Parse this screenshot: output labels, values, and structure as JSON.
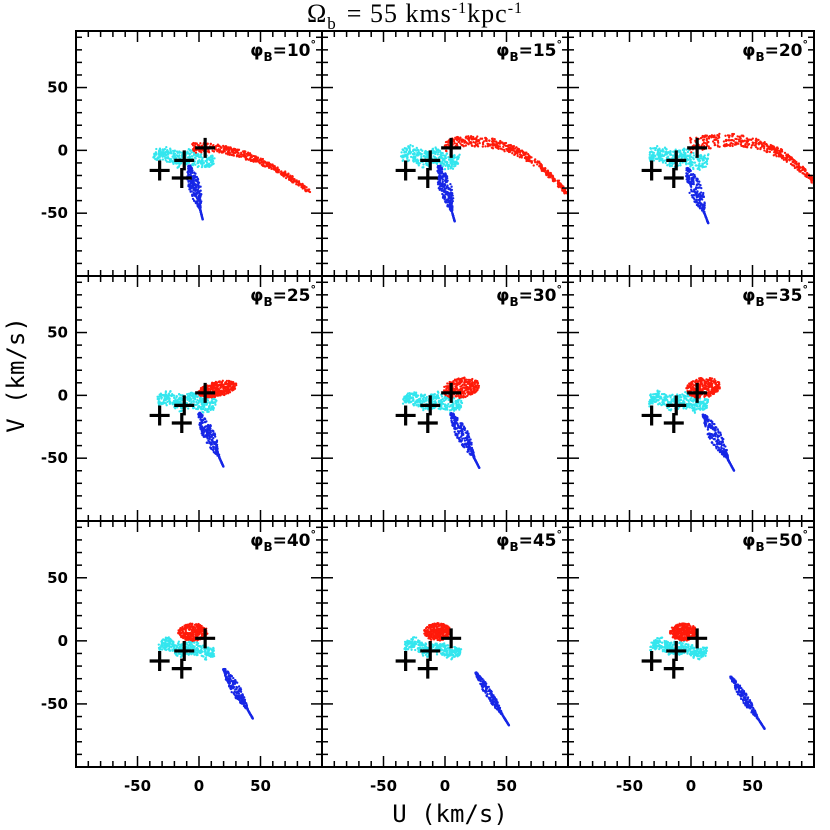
{
  "figure": {
    "title": "Ω_b = 55 kms^-1kpc^-1",
    "title_main": "Ω",
    "title_sub": "b",
    "title_rest": "= 55 kms",
    "title_exp1": "-1",
    "title_kpc": "kpc",
    "title_exp2": "-1",
    "xlabel": "U (km/s)",
    "ylabel": "V (km/s)"
  },
  "colors": {
    "red_cloud": "#ff1a0a",
    "cyan_cloud": "#33e6ee",
    "blue_cloud": "#1626e6",
    "markers": "#000000"
  },
  "chart_data": {
    "type": "scatter",
    "title": "Ω_b = 55 kms^-1kpc^-1",
    "xlabel": "U (km/s)",
    "ylabel": "V (km/s)",
    "xlim": [
      -100,
      100
    ],
    "ylim": [
      -100,
      95
    ],
    "xticks": [
      -50,
      0,
      50
    ],
    "yticks": [
      -50,
      0,
      50
    ],
    "x_tick_labels": [
      "-50",
      "0",
      "50"
    ],
    "y_tick_labels": [
      "-50",
      "0",
      "50"
    ],
    "layout": "3x3 grid",
    "grid": false,
    "marker_points": [
      {
        "u": -32,
        "v": -16
      },
      {
        "u": -14,
        "v": -22
      },
      {
        "u": -12,
        "v": -8
      },
      {
        "u": 5,
        "v": 2
      }
    ],
    "panels": [
      {
        "label": "φB=10°",
        "phi": "10"
      },
      {
        "label": "φB=15°",
        "phi": "15"
      },
      {
        "label": "φB=20°",
        "phi": "20"
      },
      {
        "label": "φB=25°",
        "phi": "25"
      },
      {
        "label": "φB=30°",
        "phi": "30"
      },
      {
        "label": "φB=35°",
        "phi": "35"
      },
      {
        "label": "φB=40°",
        "phi": "40"
      },
      {
        "label": "φB=45°",
        "phi": "45"
      },
      {
        "label": "φB=50°",
        "phi": "50"
      }
    ],
    "series": [
      {
        "color": "#ff1a0a",
        "panels": [
          {
            "phi": "10",
            "shape": "arc",
            "p0": [
              -5,
              2
            ],
            "p1": [
              40,
              5
            ],
            "p2": [
              90,
              -33
            ],
            "halfwidth": 4
          },
          {
            "phi": "15",
            "shape": "arc",
            "p0": [
              0,
              4
            ],
            "p1": [
              55,
              18
            ],
            "p2": [
              98,
              -33
            ],
            "halfwidth": 5
          },
          {
            "phi": "20",
            "shape": "arc",
            "p0": [
              0,
              4
            ],
            "p1": [
              60,
              20
            ],
            "p2": [
              100,
              -25
            ],
            "halfwidth": 6
          },
          {
            "phi": "25",
            "shape": "blob",
            "center": [
              15,
              5
            ],
            "rx": 16,
            "ry": 6,
            "tilt": 12
          },
          {
            "phi": "30",
            "shape": "blob",
            "center": [
              13,
              6
            ],
            "rx": 15,
            "ry": 8,
            "tilt": 10
          },
          {
            "phi": "35",
            "shape": "blob",
            "center": [
              10,
              6
            ],
            "rx": 14,
            "ry": 8,
            "tilt": 8
          },
          {
            "phi": "40",
            "shape": "blob",
            "center": [
              -5,
              7
            ],
            "rx": 12,
            "ry": 7,
            "tilt": 0
          },
          {
            "phi": "45",
            "shape": "blob",
            "center": [
              -6,
              7
            ],
            "rx": 11,
            "ry": 7,
            "tilt": 0
          },
          {
            "phi": "50",
            "shape": "blob",
            "center": [
              -6,
              7
            ],
            "rx": 11,
            "ry": 7,
            "tilt": 0
          }
        ]
      },
      {
        "color": "#33e6ee",
        "panels": [
          {
            "phi": "10",
            "shape": "band",
            "center": [
              -12,
              -6
            ],
            "length": 50,
            "width": 12,
            "tilt": -8
          },
          {
            "phi": "15",
            "shape": "band",
            "center": [
              -12,
              -6
            ],
            "length": 48,
            "width": 13,
            "tilt": -8
          },
          {
            "phi": "20",
            "shape": "band",
            "center": [
              -10,
              -6
            ],
            "length": 48,
            "width": 13,
            "tilt": -8
          },
          {
            "phi": "25",
            "shape": "band",
            "center": [
              -10,
              -5
            ],
            "length": 48,
            "width": 12,
            "tilt": -6
          },
          {
            "phi": "30",
            "shape": "band",
            "center": [
              -10,
              -5
            ],
            "length": 48,
            "width": 12,
            "tilt": -6
          },
          {
            "phi": "35",
            "shape": "band",
            "center": [
              -10,
              -5
            ],
            "length": 48,
            "width": 12,
            "tilt": -6
          },
          {
            "phi": "40",
            "shape": "band",
            "center": [
              -10,
              -6
            ],
            "length": 46,
            "width": 10,
            "tilt": -8
          },
          {
            "phi": "45",
            "shape": "band",
            "center": [
              -10,
              -6
            ],
            "length": 46,
            "width": 10,
            "tilt": -8
          },
          {
            "phi": "50",
            "shape": "band",
            "center": [
              -10,
              -6
            ],
            "length": 46,
            "width": 10,
            "tilt": -8
          }
        ]
      },
      {
        "color": "#1626e6",
        "panels": [
          {
            "phi": "10",
            "shape": "streak",
            "p0": [
              -8,
              -12
            ],
            "p1": [
              3,
              -55
            ],
            "width": 10
          },
          {
            "phi": "15",
            "shape": "streak",
            "p0": [
              -5,
              -12
            ],
            "p1": [
              8,
              -57
            ],
            "width": 11
          },
          {
            "phi": "20",
            "shape": "streak",
            "p0": [
              -3,
              -14
            ],
            "p1": [
              14,
              -58
            ],
            "width": 11
          },
          {
            "phi": "25",
            "shape": "streak",
            "p0": [
              0,
              -14
            ],
            "p1": [
              20,
              -57
            ],
            "width": 10
          },
          {
            "phi": "30",
            "shape": "streak",
            "p0": [
              5,
              -14
            ],
            "p1": [
              28,
              -58
            ],
            "width": 10
          },
          {
            "phi": "35",
            "shape": "streak",
            "p0": [
              10,
              -15
            ],
            "p1": [
              35,
              -60
            ],
            "width": 10
          },
          {
            "phi": "40",
            "shape": "streak",
            "p0": [
              20,
              -22
            ],
            "p1": [
              44,
              -62
            ],
            "width": 8
          },
          {
            "phi": "45",
            "shape": "streak",
            "p0": [
              25,
              -25
            ],
            "p1": [
              52,
              -67
            ],
            "width": 6
          },
          {
            "phi": "50",
            "shape": "streak",
            "p0": [
              32,
              -28
            ],
            "p1": [
              60,
              -70
            ],
            "width": 6
          }
        ]
      }
    ]
  }
}
